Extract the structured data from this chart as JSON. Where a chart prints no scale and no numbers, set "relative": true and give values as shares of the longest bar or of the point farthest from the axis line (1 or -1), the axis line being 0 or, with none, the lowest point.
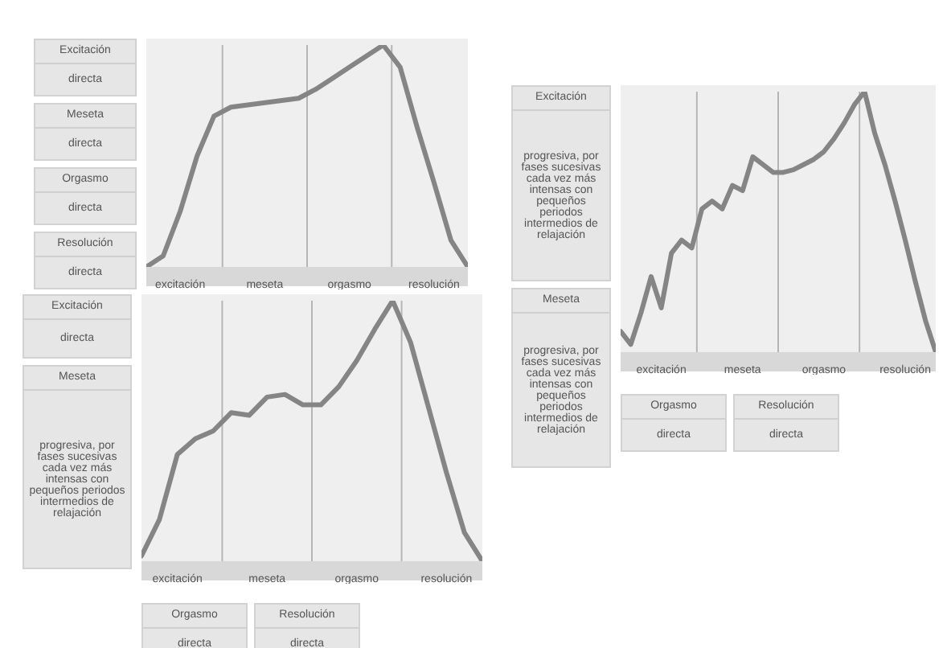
{
  "chart_data": [
    {
      "type": "line",
      "relative": true,
      "grid": "x",
      "color": "#858585",
      "categories": [
        null,
        null,
        "excitación",
        null,
        null,
        null,
        null,
        "meseta",
        null,
        null,
        null,
        null,
        "orgasmo",
        null,
        null,
        null,
        null,
        "resolución",
        null,
        null
      ],
      "values": [
        0,
        0.05,
        0.25,
        0.5,
        0.68,
        0.72,
        0.73,
        0.74,
        0.75,
        0.76,
        0.8,
        0.85,
        0.9,
        0.95,
        1,
        0.9,
        0.63,
        0.38,
        0.12,
        0
      ],
      "annotations": [
        "Excitación",
        "directa",
        "Meseta",
        "directa",
        "Orgasmo",
        "directa",
        "Resolución",
        "directa"
      ]
    },
    {
      "type": "line",
      "relative": true,
      "grid": "x",
      "color": "#858585",
      "categories": [
        null,
        null,
        "excitación",
        null,
        null,
        null,
        null,
        "meseta",
        null,
        null,
        null,
        null,
        "orgasmo",
        null,
        null,
        null,
        null,
        "resolución",
        null,
        null
      ],
      "values": [
        0.02,
        0.16,
        0.41,
        0.47,
        0.5,
        0.57,
        0.56,
        0.63,
        0.64,
        0.6,
        0.6,
        0.67,
        0.77,
        0.89,
        1,
        0.84,
        0.59,
        0.34,
        0.11,
        0
      ],
      "annotations": [
        "Excitación",
        "directa",
        "Meseta",
        "progresiva, por fases sucesivas cada vez más intensas con pequeños periodos intermedios de relajación",
        "Orgasmo",
        "directa",
        "Resolución",
        "directa"
      ]
    },
    {
      "type": "line",
      "relative": true,
      "grid": "x",
      "color": "#858585",
      "categories": [
        null,
        null,
        null,
        null,
        "excitación",
        null,
        null,
        null,
        null,
        null,
        null,
        null,
        "meseta",
        null,
        null,
        null,
        null,
        null,
        null,
        null,
        "orgasmo",
        null,
        null,
        null,
        null,
        null,
        null,
        null,
        "resolución",
        null,
        null,
        null
      ],
      "values": [
        0.08,
        0.03,
        0.15,
        0.29,
        0.17,
        0.38,
        0.43,
        0.4,
        0.55,
        0.58,
        0.55,
        0.64,
        0.62,
        0.75,
        0.72,
        0.69,
        0.69,
        0.7,
        0.72,
        0.74,
        0.77,
        0.82,
        0.88,
        0.95,
        1,
        0.84,
        0.72,
        0.58,
        0.43,
        0.27,
        0.12,
        0
      ],
      "annotations": [
        "Excitación",
        "progresiva, por fases sucesivas cada vez más intensas con pequeños periodos intermedios de relajación",
        "Meseta",
        "progresiva, por fases sucesivas cada vez más intensas con pequeños periodos intermedios de relajación",
        "Orgasmo",
        "directa",
        "Resolución",
        "directa"
      ]
    }
  ]
}
